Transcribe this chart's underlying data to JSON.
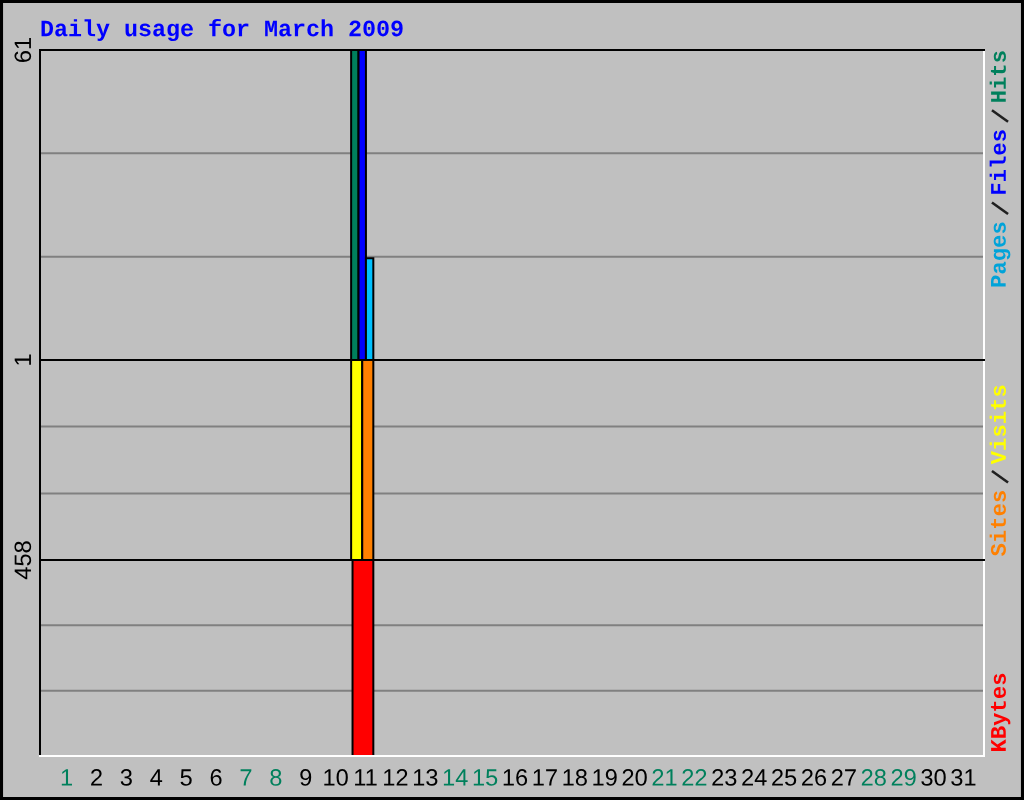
{
  "chart_data": [
    {
      "type": "bar",
      "title": "Daily usage for March 2009",
      "series": [
        {
          "name": "Hits",
          "color": "#00805c",
          "x": [
            "2009-03-11"
          ],
          "values": [
            61
          ]
        },
        {
          "name": "Files",
          "color": "#0000ff",
          "x": [
            "2009-03-11"
          ],
          "values": [
            61
          ]
        },
        {
          "name": "Pages",
          "color": "#00c0ff",
          "x": [
            "2009-03-11"
          ],
          "values": [
            20
          ]
        }
      ],
      "xlim": [
        "2009-02-28T02:40",
        "2009-03-31T16:30"
      ],
      "ylim": [
        0,
        61
      ],
      "yticks": [
        {
          "value": 20.3,
          "label": null
        },
        {
          "value": 40.7,
          "label": null
        },
        61
      ],
      "grid": "y",
      "legend": "right",
      "tick_labels": "y"
    },
    {
      "type": "bar",
      "series": [
        {
          "name": "Visits",
          "color": "#ffff00",
          "x": [
            "2009-03-11"
          ],
          "values": [
            1
          ]
        },
        {
          "name": "Sites",
          "color": "#ff8000",
          "x": [
            "2009-03-11"
          ],
          "values": [
            1
          ]
        }
      ],
      "xlim": [
        "2009-02-28T02:40",
        "2009-03-31T16:30"
      ],
      "ylim": [
        0,
        1
      ],
      "yticks": [
        {
          "value": 0.333,
          "label": null
        },
        {
          "value": 0.667,
          "label": null
        },
        1
      ],
      "grid": "y",
      "legend": "right",
      "tick_labels": "y"
    },
    {
      "type": "bar",
      "series": [
        {
          "name": "KBytes",
          "color": "#ff0000",
          "x": [
            "2009-03-11"
          ],
          "values": [
            458
          ]
        }
      ],
      "xlim": [
        "2009-02-28T02:40",
        "2009-03-31T16:30"
      ],
      "ylim": [
        0,
        458
      ],
      "yticks": [
        {
          "value": 152.7,
          "label": null
        },
        {
          "value": 305.3,
          "label": null
        },
        458
      ],
      "xticks": [
        {
          "value": "2009-03-01",
          "label": "1"
        },
        {
          "value": "2009-03-02",
          "label": "2"
        },
        {
          "value": "2009-03-03",
          "label": "3"
        },
        {
          "value": "2009-03-04",
          "label": "4"
        },
        {
          "value": "2009-03-05",
          "label": "5"
        },
        {
          "value": "2009-03-06",
          "label": "6"
        },
        {
          "value": "2009-03-07",
          "label": "7"
        },
        {
          "value": "2009-03-08",
          "label": "8"
        },
        {
          "value": "2009-03-09",
          "label": "9"
        },
        {
          "value": "2009-03-10",
          "label": "10"
        },
        {
          "value": "2009-03-11",
          "label": "11"
        },
        {
          "value": "2009-03-12",
          "label": "12"
        },
        {
          "value": "2009-03-13",
          "label": "13"
        },
        {
          "value": "2009-03-14",
          "label": "14"
        },
        {
          "value": "2009-03-15",
          "label": "15"
        },
        {
          "value": "2009-03-16",
          "label": "16"
        },
        {
          "value": "2009-03-17",
          "label": "17"
        },
        {
          "value": "2009-03-18",
          "label": "18"
        },
        {
          "value": "2009-03-19",
          "label": "19"
        },
        {
          "value": "2009-03-20",
          "label": "20"
        },
        {
          "value": "2009-03-21",
          "label": "21"
        },
        {
          "value": "2009-03-22",
          "label": "22"
        },
        {
          "value": "2009-03-23",
          "label": "23"
        },
        {
          "value": "2009-03-24",
          "label": "24"
        },
        {
          "value": "2009-03-25",
          "label": "25"
        },
        {
          "value": "2009-03-26",
          "label": "26"
        },
        {
          "value": "2009-03-27",
          "label": "27"
        },
        {
          "value": "2009-03-28",
          "label": "28"
        },
        {
          "value": "2009-03-29",
          "label": "29"
        },
        {
          "value": "2009-03-30",
          "label": "30"
        },
        {
          "value": "2009-03-31",
          "label": "31"
        }
      ],
      "grid": "y",
      "legend": "right"
    }
  ]
}
